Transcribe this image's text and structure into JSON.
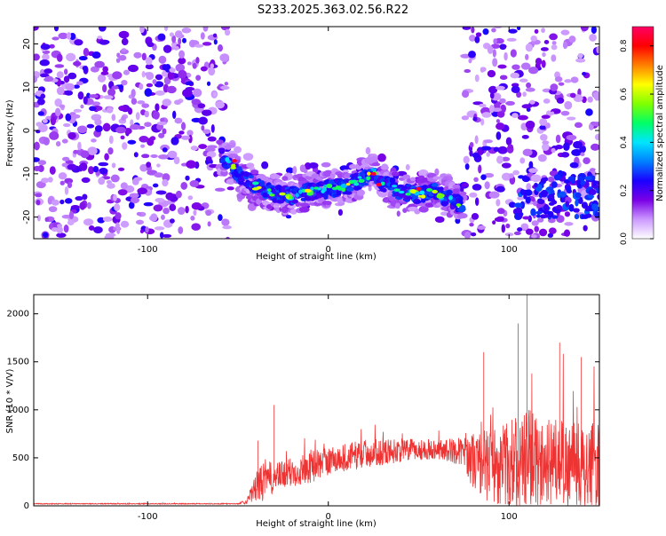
{
  "title": "S233.2025.363.02.56.R22",
  "chart_data": [
    {
      "type": "heatmap",
      "xlabel": "Height of straight line (km)",
      "ylabel": "Frequency (Hz)",
      "xlim": [
        -163,
        150
      ],
      "ylim": [
        -25,
        24
      ],
      "x_ticks": [
        -100,
        0,
        100
      ],
      "y_ticks": [
        -20,
        -10,
        0,
        10,
        20
      ],
      "colorbar": {
        "label": "Normalized spectral amplitude",
        "range": [
          0.0,
          0.88
        ],
        "ticks": [
          0.0,
          0.2,
          0.4,
          0.6,
          0.8
        ],
        "colors": [
          "#ffffff",
          "#cc99ff",
          "#7a00e6",
          "#1a00ff",
          "#0080ff",
          "#00e5ff",
          "#00ff66",
          "#80ff00",
          "#ffff00",
          "#ff8000",
          "#ff0000",
          "#ff0066"
        ]
      },
      "ridge": {
        "x": [
          -58,
          -50,
          -40,
          -30,
          -20,
          -10,
          0,
          10,
          20,
          25,
          30,
          40,
          50,
          58,
          65,
          72
        ],
        "y": [
          -6,
          -10,
          -13,
          -14.5,
          -15,
          -14,
          -13.5,
          -13,
          -11,
          -9.5,
          -12,
          -14,
          -15,
          -14,
          -15.5,
          -17
        ]
      },
      "gap_region_km": [
        -55,
        75
      ]
    },
    {
      "type": "line",
      "xlabel": "Height of straight line (km)",
      "ylabel": "SNR (10 * V/V)",
      "xlim": [
        -163,
        150
      ],
      "ylim": [
        0,
        2200
      ],
      "x_ticks": [
        -100,
        0,
        100
      ],
      "y_ticks": [
        0,
        500,
        1000,
        1500,
        2000
      ],
      "series": [
        {
          "color": "#ee3333",
          "envelope": {
            "x": [
              -163,
              -50,
              -45,
              -40,
              -35,
              -32,
              -30,
              -25,
              -20,
              -10,
              0,
              20,
              40,
              60,
              75,
              80,
              90,
              100,
              110,
              120,
              130,
              140,
              150
            ],
            "base": [
              20,
              20,
              40,
              150,
              200,
              230,
              240,
              280,
              300,
              360,
              420,
              500,
              540,
              560,
              520,
              380,
              300,
              300,
              300,
              300,
              300,
              300,
              300
            ],
            "spread": [
              10,
              10,
              60,
              300,
              450,
              350,
              300,
              300,
              320,
              350,
              300,
              300,
              250,
              200,
              300,
              600,
              800,
              900,
              1100,
              1000,
              900,
              900,
              900
            ]
          },
          "peaks": [
            {
              "x": 110,
              "y": 2200
            },
            {
              "x": 105,
              "y": 1900
            },
            {
              "x": 128,
              "y": 1700
            },
            {
              "x": 86,
              "y": 1600
            },
            {
              "x": 140,
              "y": 1550
            },
            {
              "x": -30,
              "y": 1050
            },
            {
              "x": -39,
              "y": 680
            }
          ]
        }
      ]
    }
  ]
}
